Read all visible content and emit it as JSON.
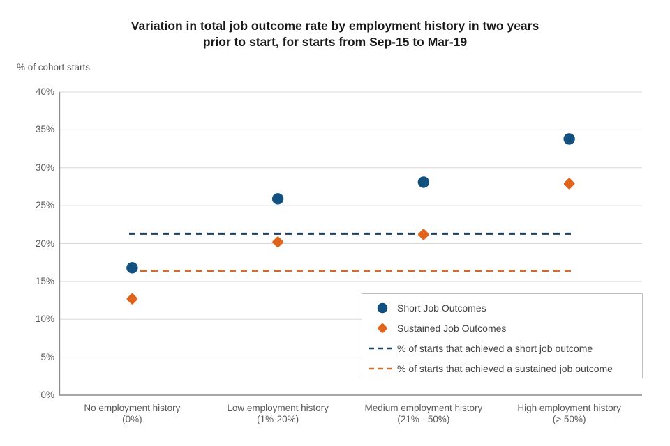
{
  "chart_data": {
    "type": "scatter",
    "title": "Variation in total job outcome rate by employment history in two years prior to start, for starts from Sep-15 to Mar-19",
    "title_lines": [
      "Variation in total job outcome rate by employment history in two years",
      "prior to start, for starts from Sep-15 to Mar-19"
    ],
    "ylabel": "% of cohort starts",
    "xlabel": "",
    "ylim": [
      0,
      40
    ],
    "ytick_step": 5,
    "ytick_labels": [
      "0%",
      "5%",
      "10%",
      "15%",
      "20%",
      "25%",
      "30%",
      "35%",
      "40%"
    ],
    "grid": true,
    "legend_position": "inside-bottom-right",
    "categories": [
      {
        "line1": "No employment history",
        "line2": "(0%)"
      },
      {
        "line1": "Low employment history",
        "line2": "(1%-20%)"
      },
      {
        "line1": "Medium employment history",
        "line2": "(21% - 50%)"
      },
      {
        "line1": "High employment history",
        "line2": "(> 50%)"
      }
    ],
    "series": [
      {
        "name": "Short Job Outcomes",
        "marker": "circle",
        "color": "#11507f",
        "values": [
          16.8,
          25.9,
          28.1,
          33.8
        ]
      },
      {
        "name": "Sustained Job Outcomes",
        "marker": "diamond",
        "color": "#e0641c",
        "values": [
          12.7,
          20.2,
          21.2,
          27.9
        ]
      }
    ],
    "reference_lines": [
      {
        "name": "% of starts that achieved a short job outcome",
        "value": 21.3,
        "color": "#1f3f5a",
        "style": "dashed"
      },
      {
        "name": "% of starts that achieved a sustained job outcome",
        "value": 16.4,
        "color": "#c96d33",
        "style": "dashed"
      }
    ]
  },
  "colors": {
    "grid": "#d9d9d9",
    "axis": "#8c8c8c",
    "tick_text": "#595959",
    "title_text": "#1a1a1a",
    "legend_text": "#404040",
    "legend_border": "#bfbfbf",
    "background": "#ffffff"
  }
}
